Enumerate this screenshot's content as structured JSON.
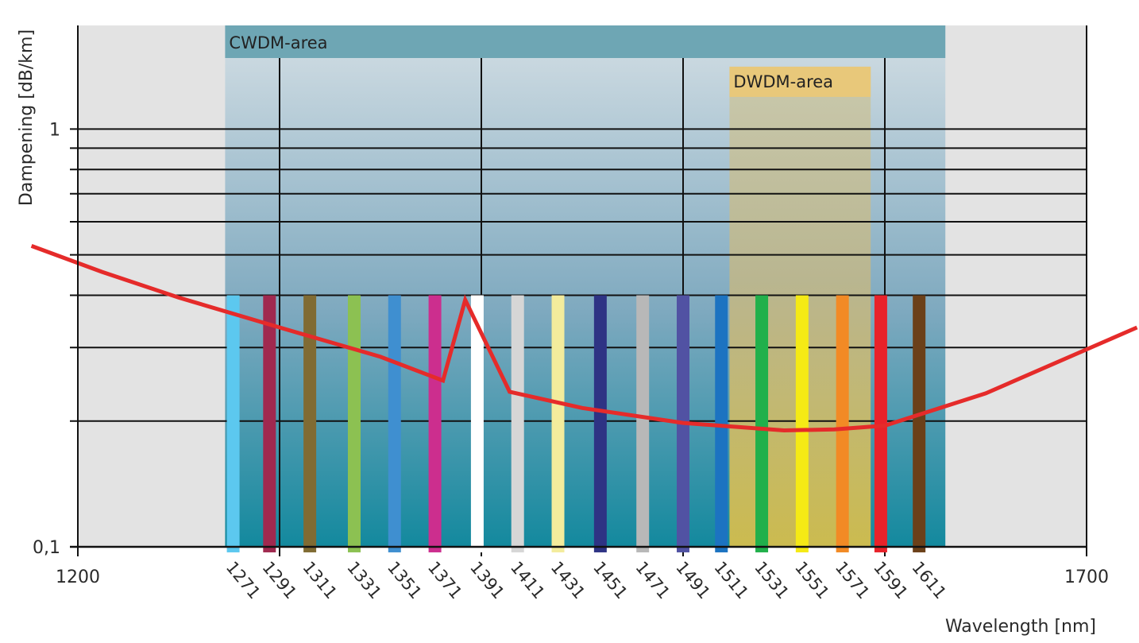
{
  "chart_data": {
    "type": "line",
    "x_scale": "linear",
    "y_scale": "log",
    "xlim": [
      1200,
      1700
    ],
    "ylim": [
      0.1,
      1.77
    ],
    "xlabel": "Wavelength [nm]",
    "ylabel": "Dampening [dB/km]",
    "x_ticks": [
      {
        "value": 1200,
        "label": "1200"
      },
      {
        "value": 1700,
        "label": "1700"
      }
    ],
    "y_ticks": [
      {
        "value": 1,
        "label": "1"
      },
      {
        "value": 0.1,
        "label": "0,1"
      }
    ],
    "y_gridlines": [
      1,
      0.9,
      0.8,
      0.7,
      0.6,
      0.5,
      0.4,
      0.3,
      0.2
    ],
    "x_gridlines": [
      1200,
      1300,
      1400,
      1500,
      1600,
      1700
    ],
    "bands": [
      {
        "name": "CWDM",
        "label": "CWDM-area",
        "x_start": 1273,
        "x_end": 1630,
        "y_top": 1.77,
        "label_color": "#6ea6b4",
        "fill_top": "#cfdbe2",
        "fill_bottom": "#178da3"
      },
      {
        "name": "DWDM",
        "label": "DWDM-area",
        "x_start": 1523,
        "x_end": 1593,
        "y_top": 1.41,
        "label_color": "#e8c87a",
        "fill_top": "#cbc7a2",
        "fill_bottom": "#f4c63e"
      }
    ],
    "channels": [
      {
        "label": "1271",
        "x": 1277,
        "color": "#5cc8ef"
      },
      {
        "label": "1291",
        "x": 1295,
        "color": "#a0294f"
      },
      {
        "label": "1311",
        "x": 1315,
        "color": "#806b33"
      },
      {
        "label": "1331",
        "x": 1337,
        "color": "#8cc152"
      },
      {
        "label": "1351",
        "x": 1357,
        "color": "#3f8fd0"
      },
      {
        "label": "1371",
        "x": 1377,
        "color": "#cc2e8e"
      },
      {
        "label": "1391",
        "x": 1398,
        "color": "#ffffff"
      },
      {
        "label": "1411",
        "x": 1418,
        "color": "#d6d6d6"
      },
      {
        "label": "1431",
        "x": 1438,
        "color": "#f3ec9c"
      },
      {
        "label": "1451",
        "x": 1459,
        "color": "#2e3384"
      },
      {
        "label": "1471",
        "x": 1480,
        "color": "#b8b8b8"
      },
      {
        "label": "1491",
        "x": 1500,
        "color": "#5152a3"
      },
      {
        "label": "1511",
        "x": 1519,
        "color": "#1c73c1"
      },
      {
        "label": "1531",
        "x": 1539,
        "color": "#21b04b"
      },
      {
        "label": "1551",
        "x": 1559,
        "color": "#f5ea15"
      },
      {
        "label": "1571",
        "x": 1579,
        "color": "#f28a25"
      },
      {
        "label": "1591",
        "x": 1598,
        "color": "#e8222a"
      },
      {
        "label": "1611",
        "x": 1617,
        "color": "#6b4019"
      }
    ],
    "channel_bar_range": [
      0.097,
      0.4
    ],
    "series": [
      {
        "name": "Dampening",
        "color": "#e52b2a",
        "x": [
          1177,
          1212,
          1250,
          1300,
          1350,
          1381,
          1392,
          1414,
          1450,
          1500,
          1550,
          1575,
          1600,
          1650,
          1725
        ],
        "y": [
          0.525,
          0.455,
          0.395,
          0.335,
          0.285,
          0.25,
          0.39,
          0.235,
          0.215,
          0.198,
          0.19,
          0.191,
          0.195,
          0.233,
          0.335
        ]
      }
    ]
  }
}
